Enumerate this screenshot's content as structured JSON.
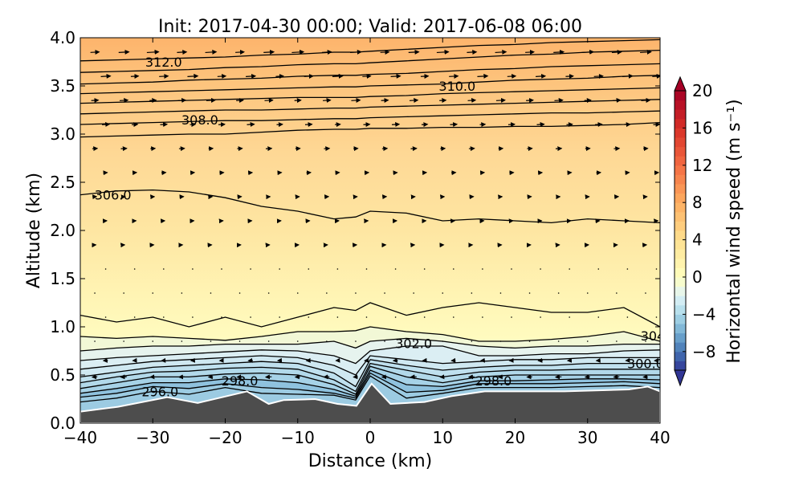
{
  "chart_data": {
    "type": "contour",
    "title": "Init: 2017-04-30 00:00; Valid: 2017-06-08 06:00",
    "xlabel": "Distance (km)",
    "ylabel": "Altitude (km)",
    "xlim": [
      -40,
      40
    ],
    "ylim": [
      0.0,
      4.0
    ],
    "xticks": [
      "−40",
      "−30",
      "−20",
      "−10",
      "0",
      "10",
      "20",
      "30",
      "40"
    ],
    "xtick_values": [
      -40,
      -30,
      -20,
      -10,
      0,
      10,
      20,
      30,
      40
    ],
    "yticks": [
      "0.0",
      "0.5",
      "1.0",
      "1.5",
      "2.0",
      "2.5",
      "3.0",
      "3.5",
      "4.0"
    ],
    "ytick_values": [
      0,
      0.5,
      1,
      1.5,
      2,
      2.5,
      3,
      3.5,
      4
    ],
    "colorbar": {
      "label": "Horizontal wind speed (m s⁻¹)",
      "range": [
        -10,
        20
      ],
      "extend": "both",
      "ticks": [
        "20",
        "16",
        "12",
        "8",
        "4",
        "0",
        "−4",
        "−8"
      ],
      "tick_values": [
        20,
        16,
        12,
        8,
        4,
        0,
        -4,
        -8
      ],
      "colormap": [
        "#313695",
        "#4575b4",
        "#74add1",
        "#abd9e9",
        "#e0f3f8",
        "#ffffbf",
        "#fee090",
        "#fdae61",
        "#f46d43",
        "#d73027",
        "#a50026"
      ],
      "colormap_values": [
        -10,
        -8,
        -6,
        -4,
        -2,
        0,
        4,
        8,
        12,
        16,
        20
      ]
    },
    "terrain": {
      "color": "#4d4d4d",
      "distance": [
        -40,
        -34.8,
        -28,
        -23.8,
        -17,
        -14,
        -11.9,
        -7.6,
        -4.5,
        -1.9,
        0.2,
        2.8,
        7.5,
        11.2,
        15.8,
        26.8,
        35.7,
        38.3,
        40
      ],
      "altitude": [
        0.12,
        0.17,
        0.27,
        0.21,
        0.33,
        0.2,
        0.24,
        0.25,
        0.2,
        0.18,
        0.41,
        0.2,
        0.22,
        0.28,
        0.33,
        0.33,
        0.35,
        0.38,
        0.33
      ]
    },
    "contour_distance": [
      -40,
      -35,
      -30,
      -25,
      -20,
      -15,
      -10,
      -5,
      -2,
      0,
      5,
      10,
      15,
      20,
      25,
      30,
      35,
      40
    ],
    "contours": [
      [
        0.22,
        0.26,
        0.33,
        0.3,
        0.37,
        0.31,
        0.3,
        0.29,
        0.24,
        0.49,
        0.26,
        0.31,
        0.37,
        0.37,
        0.37,
        0.38,
        0.39,
        0.37
      ],
      [
        0.27,
        0.31,
        0.38,
        0.36,
        0.41,
        0.37,
        0.35,
        0.31,
        0.26,
        0.52,
        0.32,
        0.34,
        0.41,
        0.41,
        0.41,
        0.42,
        0.43,
        0.41
      ],
      [
        0.31,
        0.36,
        0.42,
        0.42,
        0.46,
        0.45,
        0.42,
        0.35,
        0.28,
        0.55,
        0.4,
        0.38,
        0.44,
        0.44,
        0.45,
        0.46,
        0.46,
        0.45
      ],
      [
        0.36,
        0.42,
        0.48,
        0.48,
        0.51,
        0.52,
        0.5,
        0.4,
        0.3,
        0.59,
        0.48,
        0.42,
        0.48,
        0.5,
        0.5,
        0.5,
        0.5,
        0.5
      ],
      [
        0.42,
        0.48,
        0.53,
        0.54,
        0.57,
        0.58,
        0.56,
        0.45,
        0.33,
        0.62,
        0.55,
        0.48,
        0.53,
        0.55,
        0.55,
        0.56,
        0.56,
        0.56
      ],
      [
        0.48,
        0.53,
        0.58,
        0.6,
        0.62,
        0.64,
        0.62,
        0.52,
        0.38,
        0.66,
        0.6,
        0.55,
        0.58,
        0.6,
        0.6,
        0.62,
        0.62,
        0.62
      ],
      [
        0.56,
        0.6,
        0.64,
        0.66,
        0.68,
        0.7,
        0.68,
        0.6,
        0.5,
        0.7,
        0.66,
        0.62,
        0.64,
        0.66,
        0.66,
        0.68,
        0.68,
        0.68
      ],
      [
        0.65,
        0.68,
        0.7,
        0.72,
        0.74,
        0.76,
        0.75,
        0.7,
        0.62,
        0.75,
        0.8,
        0.8,
        0.7,
        0.7,
        0.72,
        0.72,
        0.75,
        0.76
      ],
      [
        0.75,
        0.78,
        0.8,
        0.8,
        0.82,
        0.82,
        0.82,
        0.85,
        0.78,
        0.85,
        0.88,
        0.85,
        0.8,
        0.78,
        0.8,
        0.8,
        0.82,
        0.82
      ],
      [
        0.9,
        0.88,
        0.9,
        0.88,
        0.86,
        0.9,
        0.95,
        0.95,
        0.96,
        1.0,
        0.95,
        0.92,
        0.85,
        0.85,
        0.87,
        0.9,
        0.95,
        0.85
      ],
      [
        1.12,
        1.05,
        1.1,
        1.0,
        1.1,
        1.0,
        1.1,
        1.2,
        1.17,
        1.25,
        1.12,
        1.2,
        1.25,
        1.2,
        1.15,
        1.15,
        1.2,
        1.0
      ],
      [
        2.37,
        2.41,
        2.42,
        2.4,
        2.34,
        2.25,
        2.2,
        2.12,
        2.14,
        2.2,
        2.18,
        2.1,
        2.12,
        2.1,
        2.08,
        2.12,
        2.1,
        2.08
      ],
      [
        2.97,
        2.98,
        2.99,
        3.0,
        3.0,
        3.02,
        3.04,
        3.05,
        3.05,
        3.06,
        3.06,
        3.07,
        3.07,
        3.08,
        3.08,
        3.09,
        3.1,
        3.12
      ],
      [
        3.1,
        3.11,
        3.12,
        3.13,
        3.14,
        3.14,
        3.15,
        3.16,
        3.16,
        3.17,
        3.18,
        3.19,
        3.2,
        3.21,
        3.22,
        3.22,
        3.23,
        3.24
      ],
      [
        3.21,
        3.22,
        3.23,
        3.24,
        3.25,
        3.25,
        3.26,
        3.27,
        3.27,
        3.28,
        3.29,
        3.3,
        3.31,
        3.32,
        3.33,
        3.34,
        3.35,
        3.36
      ],
      [
        3.32,
        3.33,
        3.34,
        3.35,
        3.36,
        3.37,
        3.38,
        3.38,
        3.38,
        3.39,
        3.4,
        3.42,
        3.43,
        3.44,
        3.45,
        3.46,
        3.47,
        3.48
      ],
      [
        3.42,
        3.43,
        3.44,
        3.45,
        3.46,
        3.47,
        3.48,
        3.49,
        3.49,
        3.5,
        3.51,
        3.52,
        3.54,
        3.56,
        3.57,
        3.58,
        3.6,
        3.61
      ],
      [
        3.52,
        3.53,
        3.54,
        3.56,
        3.57,
        3.58,
        3.6,
        3.61,
        3.61,
        3.62,
        3.63,
        3.65,
        3.67,
        3.68,
        3.7,
        3.71,
        3.72,
        3.73
      ],
      [
        3.64,
        3.65,
        3.66,
        3.67,
        3.69,
        3.7,
        3.72,
        3.73,
        3.73,
        3.74,
        3.76,
        3.78,
        3.8,
        3.82,
        3.83,
        3.85,
        3.86,
        3.87
      ],
      [
        3.76,
        3.77,
        3.78,
        3.79,
        3.8,
        3.82,
        3.83,
        3.85,
        3.85,
        3.86,
        3.88,
        3.9,
        3.92,
        3.93,
        3.95,
        3.96,
        3.97,
        3.98
      ]
    ],
    "contour_labels": [
      {
        "text": "312.0",
        "x": -28.5,
        "y": 3.75
      },
      {
        "text": "310.0",
        "x": 12,
        "y": 3.5
      },
      {
        "text": "308.0",
        "x": -23.5,
        "y": 3.15
      },
      {
        "text": "306.0",
        "x": -35.5,
        "y": 2.37
      },
      {
        "text": "304",
        "x": 39,
        "y": 0.91
      },
      {
        "text": "302.0",
        "x": 6,
        "y": 0.83
      },
      {
        "text": "300.0",
        "x": 38,
        "y": 0.62
      },
      {
        "text": "298.0",
        "x": -18,
        "y": 0.44
      },
      {
        "text": "298.0",
        "x": 17,
        "y": 0.44
      },
      {
        "text": "296.0",
        "x": -29,
        "y": 0.33
      }
    ],
    "wind_vectors": {
      "distance": [
        -38,
        -34,
        -30,
        -26,
        -22,
        -18,
        -14,
        -10,
        -6,
        -2,
        2,
        6,
        10,
        14,
        18,
        22,
        26,
        30,
        34,
        38
      ],
      "rows": [
        {
          "altitude": 3.85,
          "u": 8
        },
        {
          "altitude": 3.6,
          "u": 7
        },
        {
          "altitude": 3.35,
          "u": 6
        },
        {
          "altitude": 3.1,
          "u": 5
        },
        {
          "altitude": 2.85,
          "u": 4
        },
        {
          "altitude": 2.6,
          "u": 3
        },
        {
          "altitude": 2.35,
          "u": 2.5
        },
        {
          "altitude": 2.1,
          "u": 2
        },
        {
          "altitude": 1.85,
          "u": 1.5
        },
        {
          "altitude": 1.6,
          "u": 0.8
        },
        {
          "altitude": 1.35,
          "u": 0.3
        },
        {
          "altitude": 1.1,
          "u": 0.1
        },
        {
          "altitude": 0.85,
          "u": -0.5
        },
        {
          "altitude": 0.65,
          "u": -3
        },
        {
          "altitude": 0.48,
          "u": -4
        }
      ]
    }
  }
}
